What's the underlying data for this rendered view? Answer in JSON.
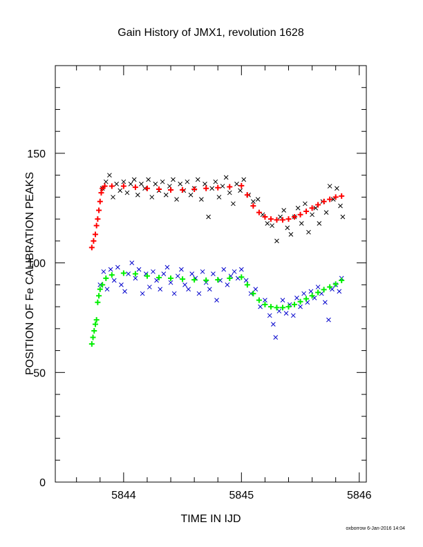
{
  "chart_data": {
    "type": "scatter",
    "title": "Gain History of JMX1, revolution 1628",
    "xlabel": "TIME IN IJD",
    "ylabel": "POSITION OF Fe CALIBRATION PEAKS",
    "xlim": [
      5843.42,
      5846.06
    ],
    "ylim": [
      0,
      190
    ],
    "x_ticks": [
      5844,
      5845,
      5846
    ],
    "y_ticks": [
      0,
      50,
      100,
      150
    ],
    "grid": false,
    "legend": "none",
    "footer": "oxborrow  6-Jan-2016 14:04",
    "series": [
      {
        "marker": "x",
        "color": "#000000",
        "points": [
          [
            5843.82,
            134
          ],
          [
            5843.85,
            137
          ],
          [
            5843.88,
            140
          ],
          [
            5843.91,
            130
          ],
          [
            5843.94,
            136
          ],
          [
            5843.97,
            133
          ],
          [
            5844.0,
            137
          ],
          [
            5844.03,
            132
          ],
          [
            5844.06,
            136
          ],
          [
            5844.09,
            138
          ],
          [
            5844.12,
            131
          ],
          [
            5844.15,
            136
          ],
          [
            5844.18,
            134
          ],
          [
            5844.21,
            138
          ],
          [
            5844.24,
            130
          ],
          [
            5844.27,
            136
          ],
          [
            5844.3,
            133
          ],
          [
            5844.33,
            137
          ],
          [
            5844.36,
            131
          ],
          [
            5844.39,
            135
          ],
          [
            5844.42,
            138
          ],
          [
            5844.45,
            129
          ],
          [
            5844.48,
            136
          ],
          [
            5844.51,
            133
          ],
          [
            5844.54,
            137
          ],
          [
            5844.57,
            131
          ],
          [
            5844.6,
            134
          ],
          [
            5844.63,
            138
          ],
          [
            5844.66,
            129
          ],
          [
            5844.69,
            136
          ],
          [
            5844.72,
            121
          ],
          [
            5844.75,
            134
          ],
          [
            5844.78,
            137
          ],
          [
            5844.81,
            130
          ],
          [
            5844.84,
            135
          ],
          [
            5844.87,
            139
          ],
          [
            5844.9,
            132
          ],
          [
            5844.93,
            127
          ],
          [
            5844.96,
            136
          ],
          [
            5844.99,
            133
          ],
          [
            5845.02,
            138
          ],
          [
            5845.06,
            131
          ],
          [
            5845.1,
            128
          ],
          [
            5845.14,
            129
          ],
          [
            5845.18,
            122
          ],
          [
            5845.22,
            118
          ],
          [
            5845.26,
            117
          ],
          [
            5845.3,
            110
          ],
          [
            5845.33,
            121
          ],
          [
            5845.36,
            124
          ],
          [
            5845.39,
            116
          ],
          [
            5845.42,
            113
          ],
          [
            5845.45,
            121
          ],
          [
            5845.48,
            125
          ],
          [
            5845.51,
            118
          ],
          [
            5845.54,
            127
          ],
          [
            5845.57,
            114
          ],
          [
            5845.6,
            122
          ],
          [
            5845.63,
            125
          ],
          [
            5845.66,
            118
          ],
          [
            5845.69,
            128
          ],
          [
            5845.72,
            123
          ],
          [
            5845.75,
            135
          ],
          [
            5845.78,
            129
          ],
          [
            5845.81,
            134
          ],
          [
            5845.84,
            126
          ],
          [
            5845.86,
            121
          ]
        ]
      },
      {
        "marker": "x",
        "color": "#0000cc",
        "points": [
          [
            5843.8,
            90
          ],
          [
            5843.83,
            96
          ],
          [
            5843.86,
            88
          ],
          [
            5843.89,
            97
          ],
          [
            5843.92,
            92
          ],
          [
            5843.95,
            98
          ],
          [
            5843.98,
            90
          ],
          [
            5844.01,
            87
          ],
          [
            5844.04,
            95
          ],
          [
            5844.07,
            100
          ],
          [
            5844.1,
            93
          ],
          [
            5844.13,
            97
          ],
          [
            5844.16,
            86
          ],
          [
            5844.19,
            95
          ],
          [
            5844.22,
            89
          ],
          [
            5844.25,
            96
          ],
          [
            5844.28,
            92
          ],
          [
            5844.31,
            88
          ],
          [
            5844.34,
            95
          ],
          [
            5844.37,
            98
          ],
          [
            5844.4,
            91
          ],
          [
            5844.43,
            86
          ],
          [
            5844.46,
            94
          ],
          [
            5844.49,
            97
          ],
          [
            5844.52,
            90
          ],
          [
            5844.55,
            88
          ],
          [
            5844.58,
            95
          ],
          [
            5844.61,
            93
          ],
          [
            5844.64,
            86
          ],
          [
            5844.67,
            96
          ],
          [
            5844.7,
            91
          ],
          [
            5844.73,
            88
          ],
          [
            5844.76,
            95
          ],
          [
            5844.79,
            83
          ],
          [
            5844.82,
            92
          ],
          [
            5844.85,
            97
          ],
          [
            5844.88,
            90
          ],
          [
            5844.91,
            94
          ],
          [
            5844.94,
            96
          ],
          [
            5844.97,
            93
          ],
          [
            5845.0,
            97
          ],
          [
            5845.04,
            92
          ],
          [
            5845.08,
            86
          ],
          [
            5845.12,
            88
          ],
          [
            5845.16,
            80
          ],
          [
            5845.2,
            83
          ],
          [
            5845.24,
            76
          ],
          [
            5845.27,
            72
          ],
          [
            5845.29,
            66
          ],
          [
            5845.32,
            78
          ],
          [
            5845.35,
            83
          ],
          [
            5845.38,
            77
          ],
          [
            5845.41,
            81
          ],
          [
            5845.44,
            76
          ],
          [
            5845.47,
            84
          ],
          [
            5845.5,
            80
          ],
          [
            5845.53,
            86
          ],
          [
            5845.56,
            82
          ],
          [
            5845.59,
            87
          ],
          [
            5845.62,
            84
          ],
          [
            5845.65,
            89
          ],
          [
            5845.68,
            86
          ],
          [
            5845.71,
            82
          ],
          [
            5845.74,
            74
          ],
          [
            5845.77,
            88
          ],
          [
            5845.8,
            90
          ],
          [
            5845.83,
            87
          ],
          [
            5845.85,
            93
          ]
        ]
      },
      {
        "marker": "+",
        "color": "#ff0000",
        "points": [
          [
            5843.73,
            107
          ],
          [
            5843.745,
            110
          ],
          [
            5843.76,
            113
          ],
          [
            5843.77,
            117
          ],
          [
            5843.78,
            120
          ],
          [
            5843.79,
            124
          ],
          [
            5843.8,
            128
          ],
          [
            5843.81,
            132
          ],
          [
            5843.82,
            134
          ],
          [
            5843.84,
            135
          ],
          [
            5843.9,
            135
          ],
          [
            5844.0,
            135
          ],
          [
            5844.1,
            134.5
          ],
          [
            5844.2,
            134
          ],
          [
            5844.3,
            133.6
          ],
          [
            5844.4,
            133.3
          ],
          [
            5844.5,
            133.3
          ],
          [
            5844.6,
            133.6
          ],
          [
            5844.7,
            134
          ],
          [
            5844.8,
            134.3
          ],
          [
            5844.9,
            134.7
          ],
          [
            5845.0,
            135.2
          ],
          [
            5845.05,
            131
          ],
          [
            5845.1,
            126
          ],
          [
            5845.15,
            123
          ],
          [
            5845.2,
            121
          ],
          [
            5845.25,
            120
          ],
          [
            5845.3,
            119.6
          ],
          [
            5845.35,
            119.6
          ],
          [
            5845.4,
            120
          ],
          [
            5845.45,
            121
          ],
          [
            5845.5,
            122
          ],
          [
            5845.55,
            123.5
          ],
          [
            5845.6,
            125
          ],
          [
            5845.65,
            126.5
          ],
          [
            5845.7,
            128
          ],
          [
            5845.75,
            129
          ],
          [
            5845.8,
            130
          ],
          [
            5845.85,
            130.5
          ]
        ]
      },
      {
        "marker": "+",
        "color": "#00ee00",
        "points": [
          [
            5843.73,
            63
          ],
          [
            5843.74,
            66
          ],
          [
            5843.75,
            69
          ],
          [
            5843.76,
            72
          ],
          [
            5843.77,
            74
          ],
          [
            5843.78,
            82
          ],
          [
            5843.79,
            85
          ],
          [
            5843.8,
            88
          ],
          [
            5843.82,
            90
          ],
          [
            5843.85,
            93
          ],
          [
            5843.9,
            94.5
          ],
          [
            5844.0,
            95.3
          ],
          [
            5844.1,
            95
          ],
          [
            5844.2,
            94
          ],
          [
            5844.3,
            93.3
          ],
          [
            5844.4,
            93
          ],
          [
            5844.5,
            92.6
          ],
          [
            5844.6,
            92.3
          ],
          [
            5844.7,
            92.1
          ],
          [
            5844.8,
            92.3
          ],
          [
            5844.9,
            93
          ],
          [
            5845.0,
            93.5
          ],
          [
            5845.05,
            90
          ],
          [
            5845.1,
            86
          ],
          [
            5845.15,
            83
          ],
          [
            5845.2,
            81
          ],
          [
            5845.25,
            80
          ],
          [
            5845.3,
            79.6
          ],
          [
            5845.35,
            79.6
          ],
          [
            5845.4,
            80
          ],
          [
            5845.45,
            81
          ],
          [
            5845.5,
            82.3
          ],
          [
            5845.55,
            83.6
          ],
          [
            5845.6,
            85
          ],
          [
            5845.65,
            86.5
          ],
          [
            5845.7,
            87.8
          ],
          [
            5845.75,
            89
          ],
          [
            5845.8,
            90.3
          ],
          [
            5845.85,
            92
          ]
        ]
      }
    ]
  }
}
